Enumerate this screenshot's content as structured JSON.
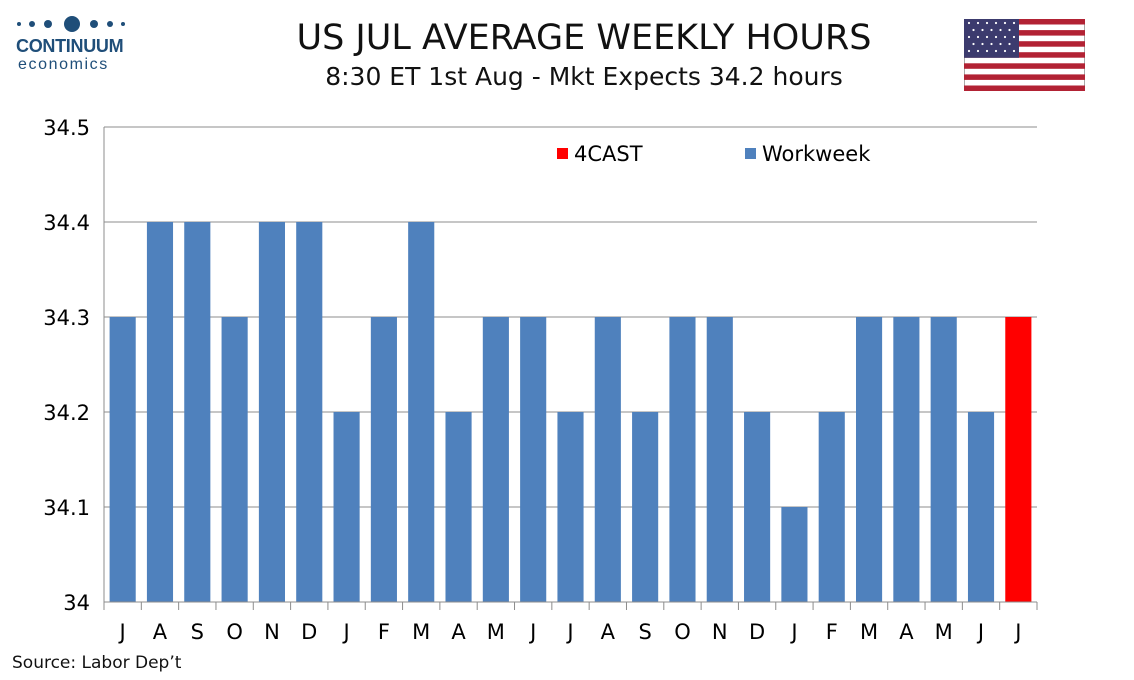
{
  "logo": {
    "word": "CONTINUUM",
    "sub": "economics"
  },
  "header": {
    "title": "US JUL AVERAGE WEEKLY HOURS",
    "subtitle": "8:30 ET 1st Aug - Mkt Expects 34.2 hours"
  },
  "source": "Source: Labor Dep’t",
  "colors": {
    "workweek": "#4f81bd",
    "forecast": "#ff0000",
    "brand": "#1f4e79"
  },
  "chart_data": {
    "type": "bar",
    "categories": [
      "J",
      "A",
      "S",
      "O",
      "N",
      "D",
      "J",
      "F",
      "M",
      "A",
      "M",
      "J",
      "J",
      "A",
      "S",
      "O",
      "N",
      "D",
      "J",
      "F",
      "M",
      "A",
      "M",
      "J",
      "J"
    ],
    "series": [
      {
        "name": "Workweek",
        "values": [
          34.3,
          34.4,
          34.4,
          34.3,
          34.4,
          34.4,
          34.2,
          34.3,
          34.4,
          34.2,
          34.3,
          34.3,
          34.2,
          34.3,
          34.2,
          34.3,
          34.3,
          34.2,
          34.1,
          34.2,
          34.3,
          34.3,
          34.3,
          34.2,
          null
        ]
      },
      {
        "name": "4CAST",
        "values": [
          null,
          null,
          null,
          null,
          null,
          null,
          null,
          null,
          null,
          null,
          null,
          null,
          null,
          null,
          null,
          null,
          null,
          null,
          null,
          null,
          null,
          null,
          null,
          null,
          34.3
        ]
      }
    ],
    "yticks": [
      "34",
      "34.1",
      "34.2",
      "34.3",
      "34.4",
      "34.5"
    ],
    "ylim": [
      34,
      34.5
    ],
    "grid": true,
    "legend_position": "top-right",
    "xlabel": "",
    "ylabel": ""
  }
}
